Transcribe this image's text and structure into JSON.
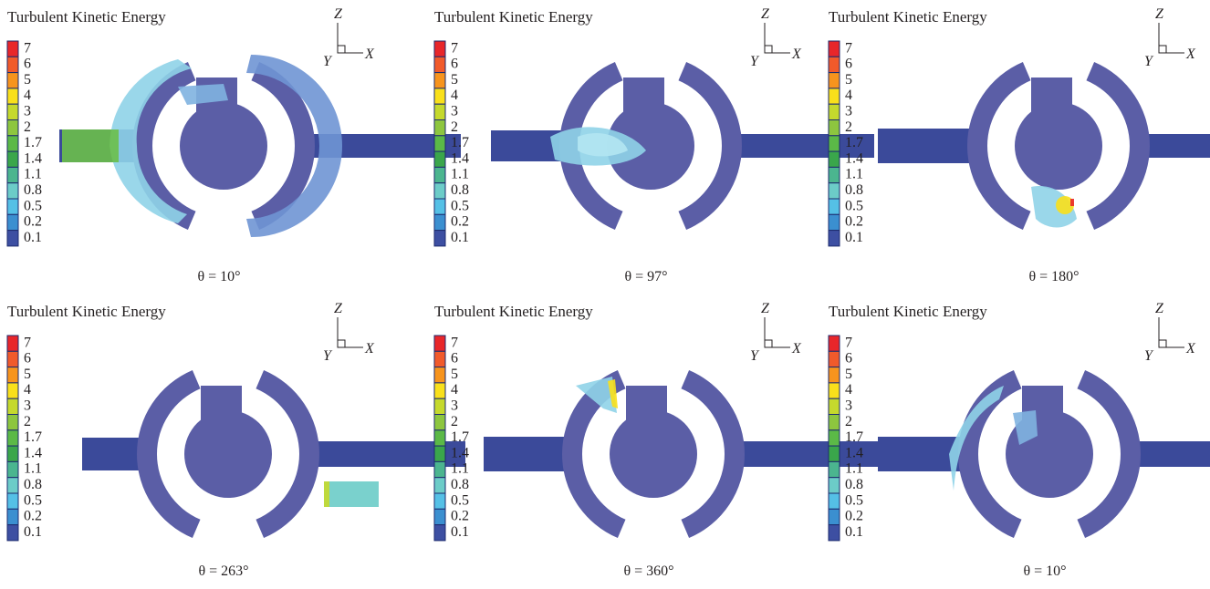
{
  "panels": [
    {
      "title": "Turbulent Kinetic Energy",
      "caption": "θ = 10°",
      "axes": {
        "z": "Z",
        "x": "X",
        "y": "Y"
      },
      "legend": {
        "labels": [
          "7",
          "6",
          "5",
          "4",
          "3",
          "2",
          "1.7",
          "1.4",
          "1.1",
          "0.8",
          "0.5",
          "0.2",
          "0.1"
        ],
        "colors": [
          "#e8262a",
          "#f15a2b",
          "#f7941d",
          "#f9e01b",
          "#c5d92d",
          "#8dc63f",
          "#5bb947",
          "#3aa64b",
          "#4bb58f",
          "#6cccc8",
          "#55c0e6",
          "#3b8fd0",
          "#3d4fa2"
        ]
      }
    },
    {
      "title": "Turbulent Kinetic Energy",
      "caption": "θ = 97°",
      "axes": {
        "z": "Z",
        "x": "X",
        "y": "Y"
      },
      "legend": {
        "labels": [
          "7",
          "6",
          "5",
          "4",
          "3",
          "2",
          "1.7",
          "1.4",
          "1.1",
          "0.8",
          "0.5",
          "0.2",
          "0.1"
        ],
        "colors": [
          "#e8262a",
          "#f15a2b",
          "#f7941d",
          "#f9e01b",
          "#c5d92d",
          "#8dc63f",
          "#5bb947",
          "#3aa64b",
          "#4bb58f",
          "#6cccc8",
          "#55c0e6",
          "#3b8fd0",
          "#3d4fa2"
        ]
      }
    },
    {
      "title": "Turbulent Kinetic Energy",
      "caption": "θ = 180°",
      "axes": {
        "z": "Z",
        "x": "X",
        "y": "Y"
      },
      "legend": {
        "labels": [
          "7",
          "6",
          "5",
          "4",
          "3",
          "2",
          "1.7",
          "1.4",
          "1.1",
          "0.8",
          "0.5",
          "0.2",
          "0.1"
        ],
        "colors": [
          "#e8262a",
          "#f15a2b",
          "#f7941d",
          "#f9e01b",
          "#c5d92d",
          "#8dc63f",
          "#5bb947",
          "#3aa64b",
          "#4bb58f",
          "#6cccc8",
          "#55c0e6",
          "#3b8fd0",
          "#3d4fa2"
        ]
      }
    },
    {
      "title": "Turbulent Kinetic Energy",
      "caption": "θ = 263°",
      "axes": {
        "z": "Z",
        "x": "X",
        "y": "Y"
      },
      "legend": {
        "labels": [
          "7",
          "6",
          "5",
          "4",
          "3",
          "2",
          "1.7",
          "1.4",
          "1.1",
          "0.8",
          "0.5",
          "0.2",
          "0.1"
        ],
        "colors": [
          "#e8262a",
          "#f15a2b",
          "#f7941d",
          "#f9e01b",
          "#c5d92d",
          "#8dc63f",
          "#5bb947",
          "#3aa64b",
          "#4bb58f",
          "#6cccc8",
          "#55c0e6",
          "#3b8fd0",
          "#3d4fa2"
        ]
      }
    },
    {
      "title": "Turbulent Kinetic Energy",
      "caption": "θ = 360°",
      "axes": {
        "z": "Z",
        "x": "X",
        "y": "Y"
      },
      "legend": {
        "labels": [
          "7",
          "6",
          "5",
          "4",
          "3",
          "2",
          "1.7",
          "1.4",
          "1.1",
          "0.8",
          "0.5",
          "0.2",
          "0.1"
        ],
        "colors": [
          "#e8262a",
          "#f15a2b",
          "#f7941d",
          "#f9e01b",
          "#c5d92d",
          "#8dc63f",
          "#5bb947",
          "#3aa64b",
          "#4bb58f",
          "#6cccc8",
          "#55c0e6",
          "#3b8fd0",
          "#3d4fa2"
        ]
      }
    },
    {
      "title": "Turbulent Kinetic Energy",
      "caption": "θ = 10°",
      "axes": {
        "z": "Z",
        "x": "X",
        "y": "Y"
      },
      "legend": {
        "labels": [
          "7",
          "6",
          "5",
          "4",
          "3",
          "2",
          "1.7",
          "1.4",
          "1.1",
          "0.8",
          "0.5",
          "0.2",
          "0.1"
        ],
        "colors": [
          "#e8262a",
          "#f15a2b",
          "#f7941d",
          "#f9e01b",
          "#c5d92d",
          "#8dc63f",
          "#5bb947",
          "#3aa64b",
          "#4bb58f",
          "#6cccc8",
          "#55c0e6",
          "#3b8fd0",
          "#3d4fa2"
        ]
      }
    }
  ]
}
